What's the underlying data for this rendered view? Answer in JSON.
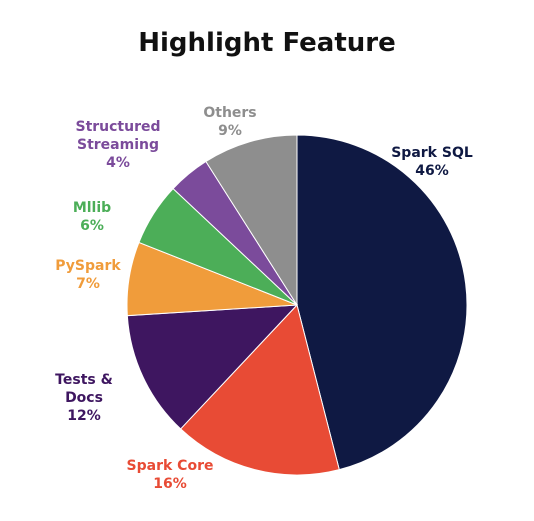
{
  "chart_data": {
    "type": "pie",
    "title": "Highlight Feature",
    "categories": [
      "Spark SQL",
      "Spark Core",
      "Tests & Docs",
      "PySpark",
      "Mllib",
      "Structured Streaming",
      "Others"
    ],
    "values": [
      46,
      16,
      12,
      7,
      6,
      4,
      9
    ],
    "value_labels": [
      "46%",
      "16%",
      "12%",
      "7%",
      "6%",
      "4%",
      "9%"
    ],
    "colors": [
      "#0f1943",
      "#e84b35",
      "#3e1660",
      "#f09c3b",
      "#4cae58",
      "#7b4b9b",
      "#8e8e8e"
    ]
  }
}
